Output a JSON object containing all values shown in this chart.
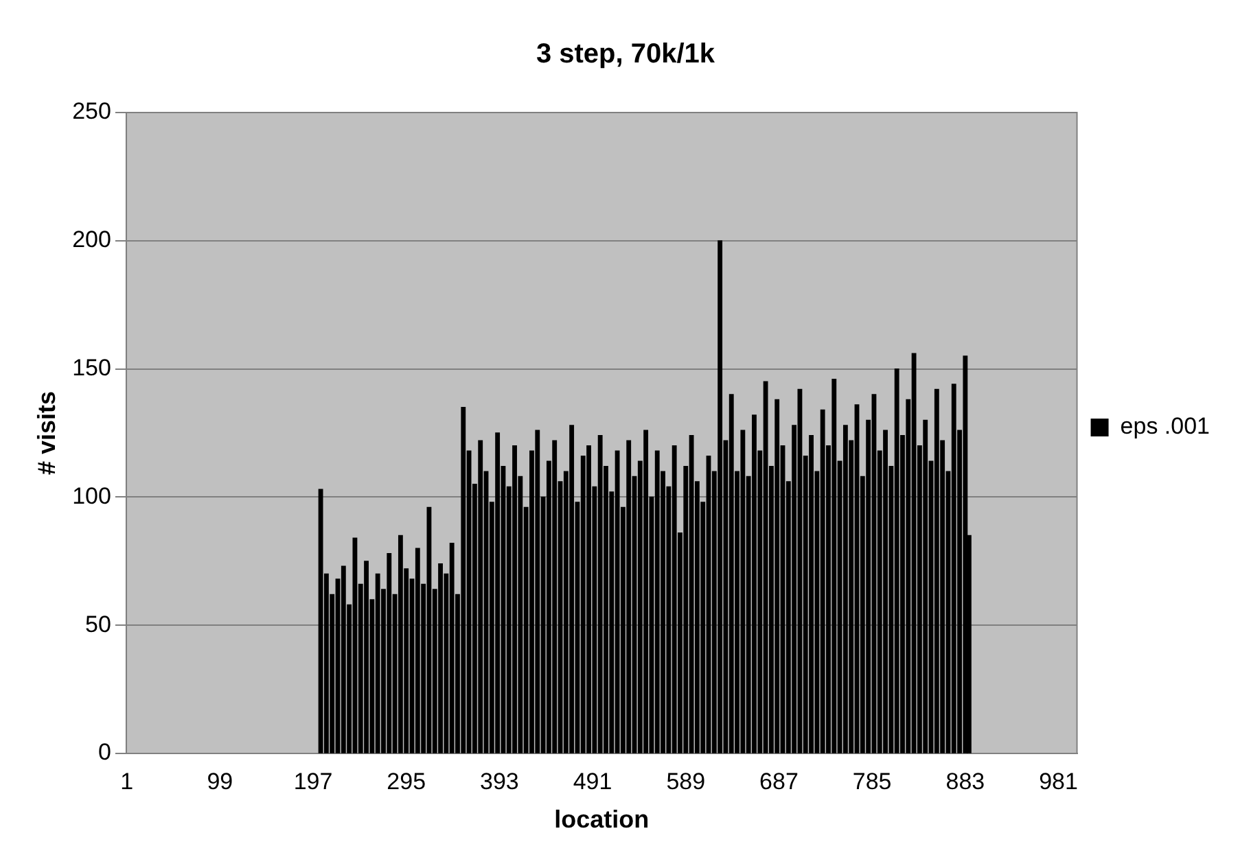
{
  "chart_data": {
    "type": "bar",
    "title": "3 step, 70k/1k",
    "xlabel": "location",
    "ylabel": "# visits",
    "x": [
      205,
      211,
      217,
      223,
      229,
      235,
      241,
      247,
      253,
      259,
      265,
      271,
      277,
      283,
      289,
      295,
      301,
      307,
      313,
      319,
      325,
      331,
      337,
      343,
      349,
      355,
      361,
      367,
      373,
      379,
      385,
      391,
      397,
      403,
      409,
      415,
      421,
      427,
      433,
      439,
      445,
      451,
      457,
      463,
      469,
      475,
      481,
      487,
      493,
      499,
      505,
      511,
      517,
      523,
      529,
      535,
      541,
      547,
      553,
      559,
      565,
      571,
      577,
      583,
      589,
      595,
      601,
      607,
      613,
      619,
      625,
      631,
      637,
      643,
      649,
      655,
      661,
      667,
      673,
      679,
      685,
      691,
      697,
      703,
      709,
      715,
      721,
      727,
      733,
      739,
      745,
      751,
      757,
      763,
      769,
      775,
      781,
      787,
      793,
      799,
      805,
      811,
      817,
      823,
      829,
      835,
      841,
      847,
      853,
      859,
      865,
      871,
      877,
      883,
      887
    ],
    "series": [
      {
        "name": "eps .001",
        "color": "#000000",
        "values": [
          103,
          70,
          62,
          68,
          73,
          58,
          84,
          66,
          75,
          60,
          70,
          64,
          78,
          62,
          85,
          72,
          68,
          80,
          66,
          96,
          64,
          74,
          70,
          82,
          62,
          135,
          118,
          105,
          122,
          110,
          98,
          125,
          112,
          104,
          120,
          108,
          96,
          118,
          126,
          100,
          114,
          122,
          106,
          110,
          128,
          98,
          116,
          120,
          104,
          124,
          112,
          102,
          118,
          96,
          122,
          108,
          114,
          126,
          100,
          118,
          110,
          104,
          120,
          86,
          112,
          124,
          106,
          98,
          116,
          110,
          200,
          122,
          140,
          110,
          126,
          108,
          132,
          118,
          145,
          112,
          138,
          120,
          106,
          128,
          142,
          116,
          124,
          110,
          134,
          120,
          146,
          114,
          128,
          122,
          136,
          108,
          130,
          140,
          118,
          126,
          112,
          150,
          124,
          138,
          156,
          120,
          130,
          114,
          142,
          122,
          110,
          144,
          126,
          155,
          85
        ]
      }
    ],
    "xlim": [
      0.5,
      1000.5
    ],
    "xticks": [
      1,
      99,
      197,
      295,
      393,
      491,
      589,
      687,
      785,
      883,
      981
    ],
    "ylim": [
      0,
      250
    ],
    "yticks": [
      0,
      50,
      100,
      150,
      200,
      250
    ],
    "grid": "y",
    "legend": "right"
  }
}
